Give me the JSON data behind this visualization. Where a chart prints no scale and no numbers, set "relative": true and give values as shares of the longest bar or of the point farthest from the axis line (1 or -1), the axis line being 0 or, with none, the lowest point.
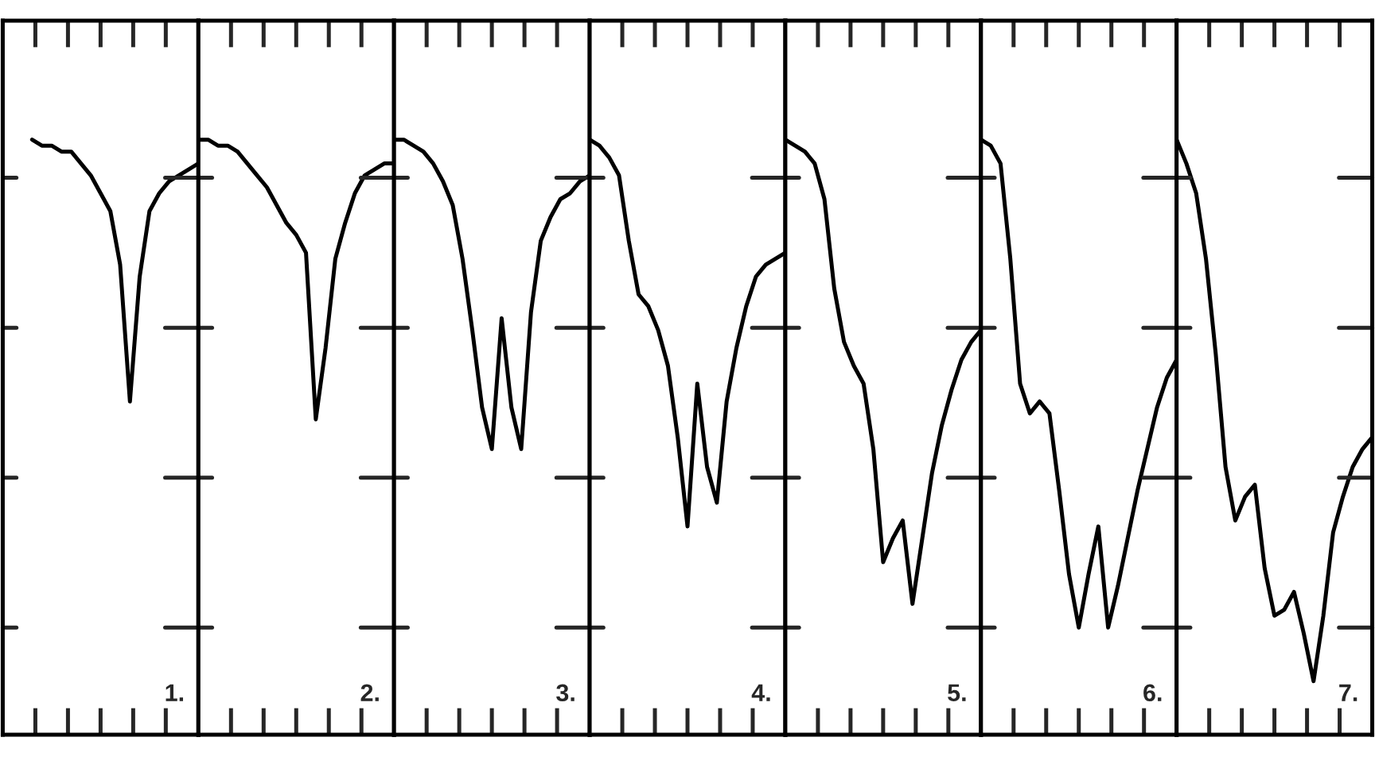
{
  "chart_data": [
    {
      "type": "line",
      "relative": true,
      "tick_labels": false,
      "color": "#000000",
      "annotations": [
        "1."
      ],
      "categories": [
        null,
        null,
        null,
        null,
        null,
        null,
        null,
        null,
        null,
        null,
        null,
        null,
        null,
        null,
        null,
        null,
        null,
        null,
        null,
        null,
        null
      ],
      "values": [
        null,
        null,
        null,
        1.0,
        0.99,
        0.99,
        0.98,
        0.98,
        0.96,
        0.94,
        0.91,
        0.88,
        0.79,
        0.56,
        0.77,
        0.88,
        0.91,
        0.93,
        0.94,
        0.95,
        0.96
      ]
    },
    {
      "type": "line",
      "relative": true,
      "tick_labels": false,
      "color": "#000000",
      "annotations": [
        "2."
      ],
      "categories": [
        null,
        null,
        null,
        null,
        null,
        null,
        null,
        null,
        null,
        null,
        null,
        null,
        null,
        null,
        null,
        null,
        null,
        null,
        null,
        null,
        null
      ],
      "values": [
        1.0,
        1.0,
        0.99,
        0.99,
        0.98,
        0.96,
        0.94,
        0.92,
        0.89,
        0.86,
        0.84,
        0.81,
        0.53,
        0.65,
        0.8,
        0.86,
        0.91,
        0.94,
        0.95,
        0.96,
        0.96
      ]
    },
    {
      "type": "line",
      "relative": true,
      "tick_labels": false,
      "color": "#000000",
      "annotations": [
        "3."
      ],
      "categories": [
        null,
        null,
        null,
        null,
        null,
        null,
        null,
        null,
        null,
        null,
        null,
        null,
        null,
        null,
        null,
        null,
        null,
        null,
        null,
        null,
        null
      ],
      "values": [
        1.0,
        1.0,
        0.99,
        0.98,
        0.96,
        0.93,
        0.89,
        0.8,
        0.68,
        0.55,
        0.48,
        0.7,
        0.55,
        0.48,
        0.71,
        0.83,
        0.87,
        0.9,
        0.91,
        0.93,
        0.94
      ]
    },
    {
      "type": "line",
      "relative": true,
      "tick_labels": false,
      "color": "#000000",
      "annotations": [
        "4."
      ],
      "categories": [
        null,
        null,
        null,
        null,
        null,
        null,
        null,
        null,
        null,
        null,
        null,
        null,
        null,
        null,
        null,
        null,
        null,
        null,
        null,
        null,
        null
      ],
      "values": [
        1.0,
        0.99,
        0.97,
        0.94,
        0.83,
        0.74,
        0.72,
        0.68,
        0.62,
        0.5,
        0.35,
        0.59,
        0.45,
        0.39,
        0.56,
        0.65,
        0.72,
        0.77,
        0.79,
        0.8,
        0.81
      ]
    },
    {
      "type": "line",
      "relative": true,
      "tick_labels": false,
      "color": "#000000",
      "annotations": [
        "5."
      ],
      "categories": [
        null,
        null,
        null,
        null,
        null,
        null,
        null,
        null,
        null,
        null,
        null,
        null,
        null,
        null,
        null,
        null,
        null,
        null,
        null,
        null,
        null
      ],
      "values": [
        1.0,
        0.99,
        0.98,
        0.96,
        0.9,
        0.75,
        0.66,
        0.62,
        0.59,
        0.48,
        0.29,
        0.33,
        0.36,
        0.22,
        0.33,
        0.44,
        0.52,
        0.58,
        0.63,
        0.66,
        0.68
      ]
    },
    {
      "type": "line",
      "relative": true,
      "tick_labels": false,
      "color": "#000000",
      "annotations": [
        "6."
      ],
      "categories": [
        null,
        null,
        null,
        null,
        null,
        null,
        null,
        null,
        null,
        null,
        null,
        null,
        null,
        null,
        null,
        null,
        null,
        null,
        null,
        null,
        null
      ],
      "values": [
        1.0,
        0.99,
        0.96,
        0.8,
        0.59,
        0.54,
        0.56,
        0.54,
        0.41,
        0.27,
        0.18,
        0.27,
        0.35,
        0.18,
        0.25,
        0.33,
        0.41,
        0.48,
        0.55,
        0.6,
        0.63
      ]
    },
    {
      "type": "line",
      "relative": true,
      "tick_labels": false,
      "color": "#000000",
      "annotations": [
        "7."
      ],
      "categories": [
        null,
        null,
        null,
        null,
        null,
        null,
        null,
        null,
        null,
        null,
        null,
        null,
        null,
        null,
        null,
        null,
        null,
        null,
        null,
        null,
        null
      ],
      "values": [
        1.0,
        0.96,
        0.91,
        0.8,
        0.64,
        0.45,
        0.36,
        0.4,
        0.42,
        0.28,
        0.2,
        0.21,
        0.24,
        0.17,
        0.09,
        0.2,
        0.34,
        0.4,
        0.45,
        0.48,
        0.5
      ]
    }
  ]
}
